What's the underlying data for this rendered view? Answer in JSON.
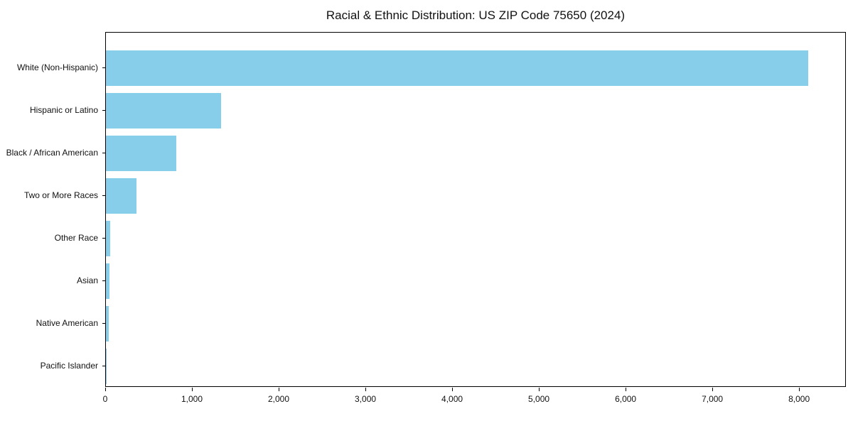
{
  "chart_data": {
    "type": "bar",
    "orientation": "horizontal",
    "title": "Racial & Ethnic Distribution: US ZIP Code 75650 (2024)",
    "xlabel": "",
    "ylabel": "",
    "categories": [
      "White (Non-Hispanic)",
      "Hispanic or Latino",
      "Black / African American",
      "Two or More Races",
      "Other Race",
      "Asian",
      "Native American",
      "Pacific Islander"
    ],
    "values": [
      8100,
      1330,
      810,
      350,
      50,
      40,
      30,
      5
    ],
    "bar_color": "#87CEEB",
    "xlim": [
      0,
      8540
    ],
    "x_ticks": [
      0,
      1000,
      2000,
      3000,
      4000,
      5000,
      6000,
      7000,
      8000
    ],
    "x_tick_labels": [
      "0",
      "1,000",
      "2,000",
      "3,000",
      "4,000",
      "5,000",
      "6,000",
      "7,000",
      "8,000"
    ],
    "grid": "off",
    "legend": "none"
  }
}
